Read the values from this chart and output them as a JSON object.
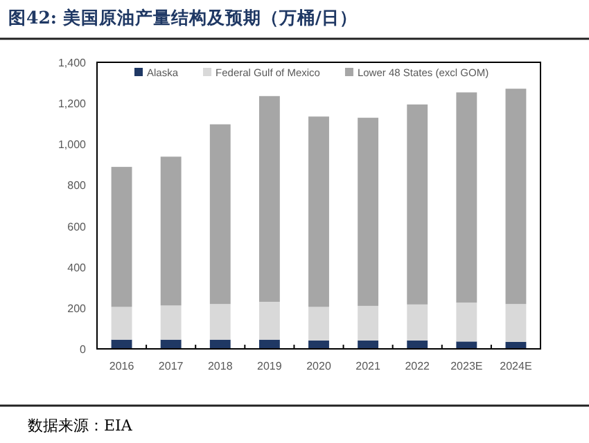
{
  "chart_data": {
    "type": "bar",
    "stacked": true,
    "title": "图42: 美国原油产量结构及预期（万桶/日）",
    "categories": [
      "2016",
      "2017",
      "2018",
      "2019",
      "2020",
      "2021",
      "2022",
      "2023E",
      "2024E"
    ],
    "series": [
      {
        "name": "Alaska",
        "color": "#1f3864",
        "values": [
          45,
          45,
          45,
          45,
          41,
          41,
          41,
          36,
          34
        ]
      },
      {
        "name": "Federal Gulf of Mexico",
        "color": "#d9d9d9",
        "values": [
          160,
          167,
          174,
          185,
          164,
          169,
          176,
          190,
          185
        ]
      },
      {
        "name": "Lower 48 States (excl GOM)",
        "color": "#a6a6a6",
        "values": [
          684,
          727,
          878,
          1005,
          930,
          919,
          977,
          1027,
          1052
        ]
      }
    ],
    "ylim": [
      0,
      1400
    ],
    "yticks": [
      0,
      200,
      400,
      600,
      800,
      {
        "value": 1000,
        "label": "1,000"
      },
      {
        "value": 1200,
        "label": "1,200"
      },
      {
        "value": 1400,
        "label": "1,400"
      }
    ],
    "grid": false,
    "legend": "top",
    "annotations": [
      "数据来源：EIA"
    ]
  }
}
